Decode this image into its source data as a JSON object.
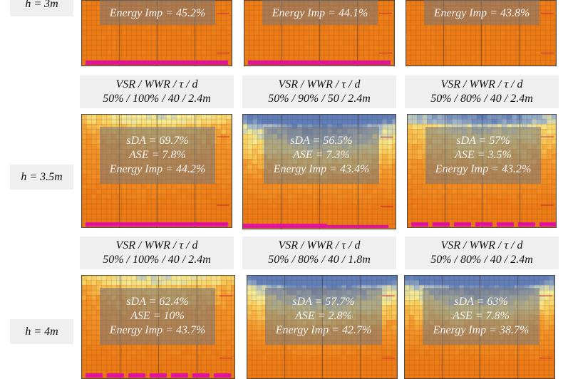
{
  "rows": [
    {
      "label": "h = 3m",
      "cells": [
        {
          "header1": "",
          "header2": "",
          "sda": "",
          "ase": "",
          "energy": "Energy Imp = 45.2%",
          "colormap": "warm",
          "magenta": "full"
        },
        {
          "header1": "",
          "header2": "",
          "sda": "",
          "ase": "",
          "energy": "Energy Imp = 44.1%",
          "colormap": "warm",
          "magenta": "full"
        },
        {
          "header1": "",
          "header2": "",
          "sda": "",
          "ase": "",
          "energy": "Energy Imp = 43.8%",
          "colormap": "warm",
          "magenta": "none"
        }
      ]
    },
    {
      "label": "h = 3.5m",
      "cells": [
        {
          "header1": "VSR / WWR / τ / d",
          "header2": "50% / 100% / 40 / 2.4m",
          "sda": "sDA = 69.7%",
          "ase": "ASE = 7.8%",
          "energy": "Energy Imp = 44.2%",
          "colormap": "light-blue",
          "magenta": "full"
        },
        {
          "header1": "VSR / WWR / τ / d",
          "header2": "50% / 90% / 50 / 2.4m",
          "sda": "sDA = 56.5%",
          "ase": "ASE = 7.3%",
          "energy": "Energy Imp = 43.4%",
          "colormap": "blue",
          "magenta": "partial"
        },
        {
          "header1": "VSR / WWR / τ / d",
          "header2": "50% / 80% / 40 / 2.4m",
          "sda": "sDA = 57%",
          "ase": "ASE = 3.5%",
          "energy": "Energy Imp = 43.2%",
          "colormap": "mixed",
          "magenta": "segments"
        }
      ]
    },
    {
      "label": "h = 4m",
      "cells": [
        {
          "header1": "VSR / WWR / τ / d",
          "header2": "50% / 100% / 40 / 2.4m",
          "sda": "sDA = 62.4%",
          "ase": "ASE = 10%",
          "energy": "Energy Imp = 43.7%",
          "colormap": "light-blue",
          "magenta": "segments"
        },
        {
          "header1": "VSR / WWR / τ / d",
          "header2": "50% / 80% / 40 / 1.8m",
          "sda": "sDA = 57.7%",
          "ase": "ASE = 2.8%",
          "energy": "Energy Imp = 42.7%",
          "colormap": "blue",
          "magenta": "none"
        },
        {
          "header1": "VSR / WWR / τ / d",
          "header2": "50% / 80% / 40 / 2.4m",
          "sda": "sDA = 63%",
          "ase": "ASE = 7.8%",
          "energy": "Energy Imp = 38.7%",
          "colormap": "blue",
          "magenta": "none"
        }
      ]
    }
  ]
}
